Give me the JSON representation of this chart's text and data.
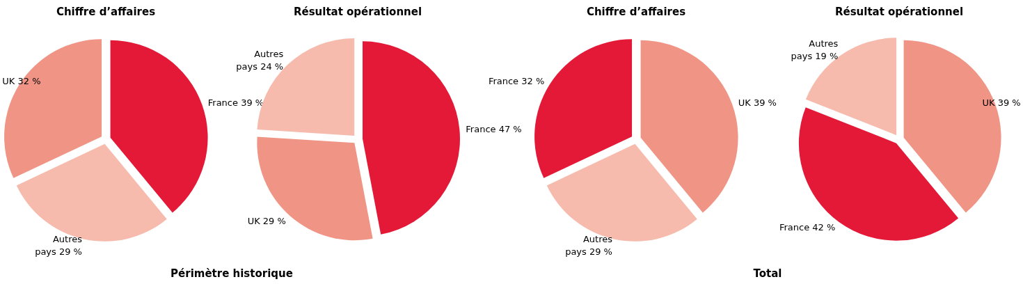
{
  "chart_data": [
    {
      "type": "pie",
      "title": "Chiffre d’affaires",
      "categories": [
        "France",
        "Autres pays",
        "UK"
      ],
      "values": [
        39,
        29,
        32
      ],
      "value_labels": [
        "39 %",
        "29 %",
        "32 %"
      ],
      "colors": [
        "#e31937",
        "#f7bbad",
        "#f09585"
      ],
      "legend": false,
      "annotations": [
        "Périmètre historique"
      ]
    },
    {
      "type": "pie",
      "title": "Résultat opérationnel",
      "categories": [
        "France",
        "UK",
        "Autres pays"
      ],
      "values": [
        47,
        29,
        24
      ],
      "value_labels": [
        "47 %",
        "29 %",
        "24 %"
      ],
      "colors": [
        "#e31937",
        "#f09585",
        "#f7bbad"
      ],
      "legend": false
    },
    {
      "type": "pie",
      "title": "Chiffre d’affaires",
      "categories": [
        "UK",
        "Autres pays",
        "France"
      ],
      "values": [
        39,
        29,
        32
      ],
      "value_labels": [
        "39 %",
        "29 %",
        "32 %"
      ],
      "colors": [
        "#f09585",
        "#f7bbad",
        "#e31937"
      ],
      "legend": false,
      "annotations": [
        "Total"
      ]
    },
    {
      "type": "pie",
      "title": "Résultat opérationnel",
      "categories": [
        "UK",
        "France",
        "Autres pays"
      ],
      "values": [
        39,
        42,
        19
      ],
      "value_labels": [
        "39 %",
        "42 %",
        "19 %"
      ],
      "colors": [
        "#f09585",
        "#e31937",
        "#f7bbad"
      ],
      "legend": false
    }
  ]
}
